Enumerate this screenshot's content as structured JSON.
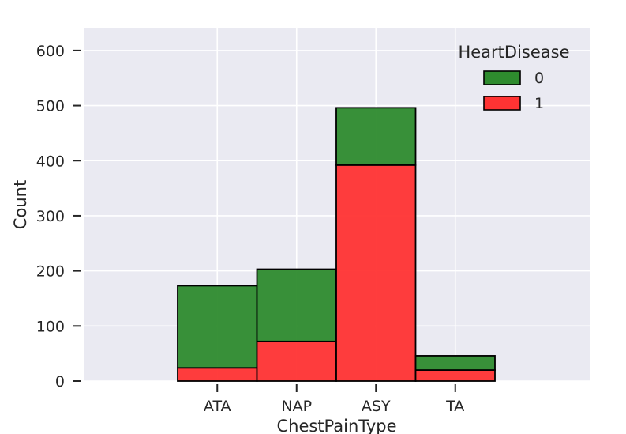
{
  "chart_data": {
    "type": "bar",
    "stacked": true,
    "categories": [
      "ATA",
      "NAP",
      "ASY",
      "TA"
    ],
    "series": [
      {
        "name": "0",
        "values": [
          149,
          131,
          104,
          26
        ],
        "color": "#2e8b2e"
      },
      {
        "name": "1",
        "values": [
          24,
          72,
          392,
          20
        ],
        "color": "#ff3333"
      }
    ],
    "title": "",
    "xlabel": "ChestPainType",
    "ylabel": "Count",
    "ylim": [
      0,
      640
    ],
    "yticks": [
      0,
      100,
      200,
      300,
      400,
      500,
      600
    ],
    "grid": true,
    "legend": {
      "title": "HeartDisease",
      "placement": "top-right"
    },
    "background_color": "#eaeaf2",
    "edge_color": "#000000"
  }
}
